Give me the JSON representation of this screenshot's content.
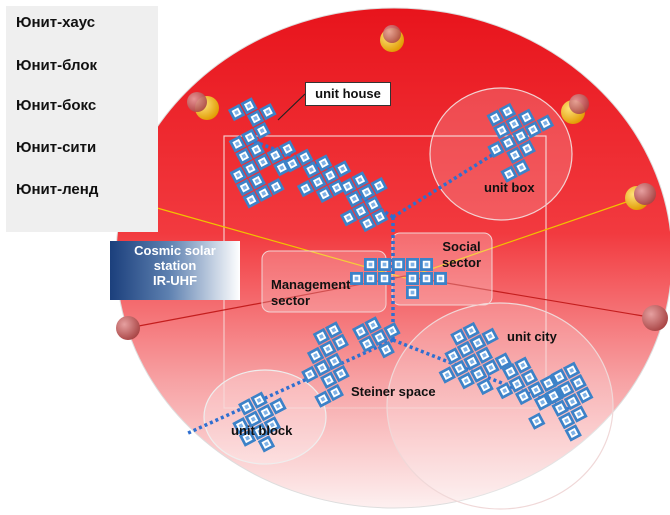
{
  "legend": {
    "items": [
      "Юнит-хаус",
      "Юнит-блок",
      "Юнит-бокс",
      "Юнит-сити",
      "Юнит-ленд"
    ]
  },
  "labels": {
    "unit_house": "unit house",
    "unit_box": "unit box",
    "social_sector": [
      "Social",
      "sector"
    ],
    "management_sector": [
      "Management",
      "sector"
    ],
    "unit_city": "unit city",
    "steiner_space": "Steiner space",
    "unit_block": "unit block",
    "cosmic_station": [
      "Cosmic solar",
      "station",
      "IR-UHF"
    ]
  },
  "colors": {
    "disk_top": "#e8141c",
    "disk_bottom": "#fbe8e8",
    "module_fill": "#3c82c8",
    "module_window": "#ffffff",
    "sun_orb": "#f2b705",
    "grey_orb": "#c26a6a",
    "beam_yellow": "#f2c200",
    "beam_red": "#c41e1e",
    "path_blue": "#2f6fd0"
  }
}
